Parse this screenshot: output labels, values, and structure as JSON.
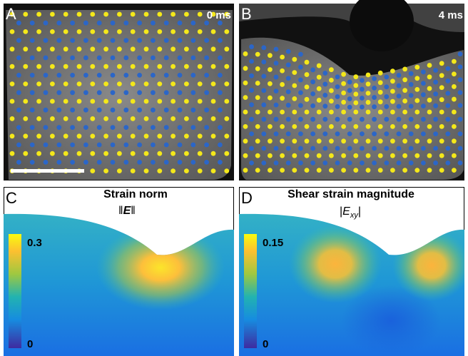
{
  "panels": [
    {
      "label": "A",
      "time": "0 ms"
    },
    {
      "label": "B",
      "time": "4 ms"
    },
    {
      "label": "C",
      "title": "Strain norm",
      "symbol": [
        "‖",
        "E",
        "‖"
      ],
      "colorbar": {
        "max": "0.3",
        "min": "0"
      }
    },
    {
      "label": "D",
      "title": "Shear strain magnitude",
      "symbol": [
        "|",
        "E",
        "xy",
        "|"
      ],
      "colorbar": {
        "max": "0.15",
        "min": "0"
      }
    }
  ]
}
